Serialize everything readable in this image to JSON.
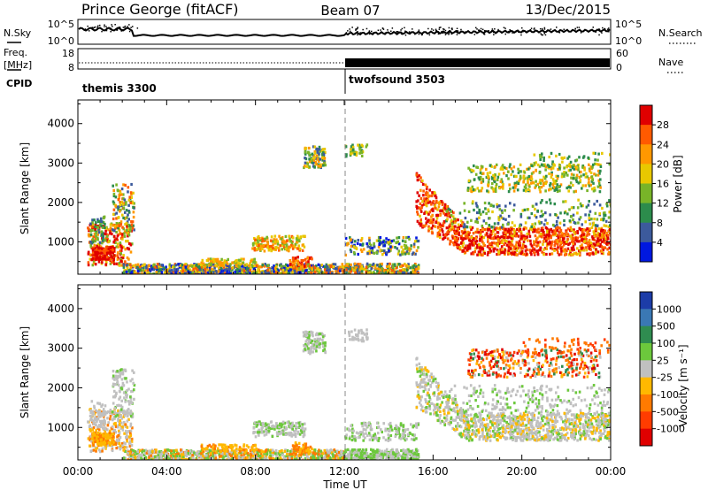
{
  "header": {
    "station": "Prince George (fitACF)",
    "beam": "Beam 07",
    "date": "13/Dec/2015"
  },
  "nsky_panel": {
    "left_label": "N.Sky",
    "right_label": "N.Search",
    "ticks": [
      "10^5",
      "10^0"
    ]
  },
  "freq_panel": {
    "left_label_1": "Freq.",
    "left_label_2": "[MHz]",
    "right_label": "Nave",
    "left_ticks": [
      "18",
      "8"
    ],
    "right_ticks": [
      "60",
      "0"
    ]
  },
  "cpid": {
    "label": "CPID",
    "modes": [
      {
        "name": "themis 3300",
        "start_hour": 0
      },
      {
        "name": "twofsound 3503",
        "start_hour": 12
      }
    ]
  },
  "chart_data": [
    {
      "type": "heatmap",
      "title": "",
      "ylabel": "Slant Range [km]",
      "xlabel": "",
      "x_range_hours": [
        0,
        24
      ],
      "ylim": [
        180,
        4600
      ],
      "y_ticks": [
        1000,
        2000,
        3000,
        4000
      ],
      "x_tick_labels": [
        "00:00",
        "04:00",
        "08:00",
        "12:00",
        "16:00",
        "20:00",
        "00:00"
      ],
      "colorbar": {
        "label": "Power [dB]",
        "tick_labels": [
          "28",
          "24",
          "20",
          "16",
          "12",
          "8",
          "4"
        ],
        "colors": [
          "#e00000",
          "#ff5a00",
          "#ff9800",
          "#e8c800",
          "#78b428",
          "#2c8c4c",
          "#3c5a9c",
          "#0018e0"
        ]
      }
    },
    {
      "type": "heatmap",
      "title": "",
      "ylabel": "Slant Range [km]",
      "xlabel": "Time UT",
      "x_range_hours": [
        0,
        24
      ],
      "ylim": [
        180,
        4600
      ],
      "y_ticks": [
        1000,
        2000,
        3000,
        4000
      ],
      "x_tick_labels": [
        "00:00",
        "04:00",
        "08:00",
        "12:00",
        "16:00",
        "20:00",
        "00:00"
      ],
      "colorbar": {
        "label": "Velocity [m s⁻¹]",
        "tick_labels": [
          "1000",
          "500",
          "100",
          "25",
          "-25",
          "-100",
          "-500",
          "-1000"
        ],
        "colors": [
          "#1c3ca8",
          "#3a78b4",
          "#2f8c50",
          "#6cc83c",
          "#c0c0c0",
          "#ffb800",
          "#ff7a00",
          "#ff3c00",
          "#e00000"
        ]
      }
    }
  ]
}
